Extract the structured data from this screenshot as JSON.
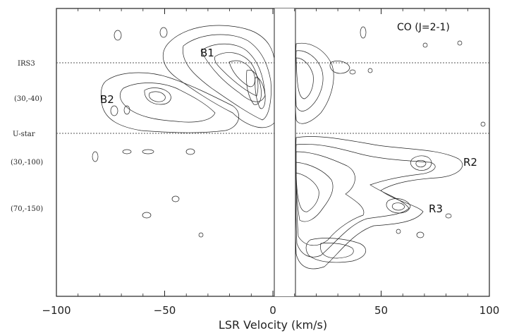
{
  "chart_data": {
    "type": "contour",
    "title": "CO (J=2-1)",
    "xlabel": "LSR Velocity (km/s)",
    "xlim": [
      -100,
      100
    ],
    "xticks": [
      -100,
      -50,
      0,
      50,
      100
    ],
    "xtick_labels": [
      "−100",
      "−50",
      "0",
      "50",
      "100"
    ],
    "row_labels": [
      "IRS3",
      "(30,-40)",
      "U-star",
      "(30,-100)",
      "(70,-150)"
    ],
    "reference_lines": [
      "IRS3",
      "U-star"
    ],
    "blanked_velocity_range": [
      0,
      10
    ],
    "annotations": [
      {
        "label": "B1",
        "x": -32,
        "row": "IRS3"
      },
      {
        "label": "B2",
        "x": -75,
        "row": "(30,-40)"
      },
      {
        "label": "R2",
        "x": 88,
        "row": "(30,-100)"
      },
      {
        "label": "R3",
        "x": 75,
        "row": "(70,-150)"
      }
    ],
    "grid": false
  }
}
